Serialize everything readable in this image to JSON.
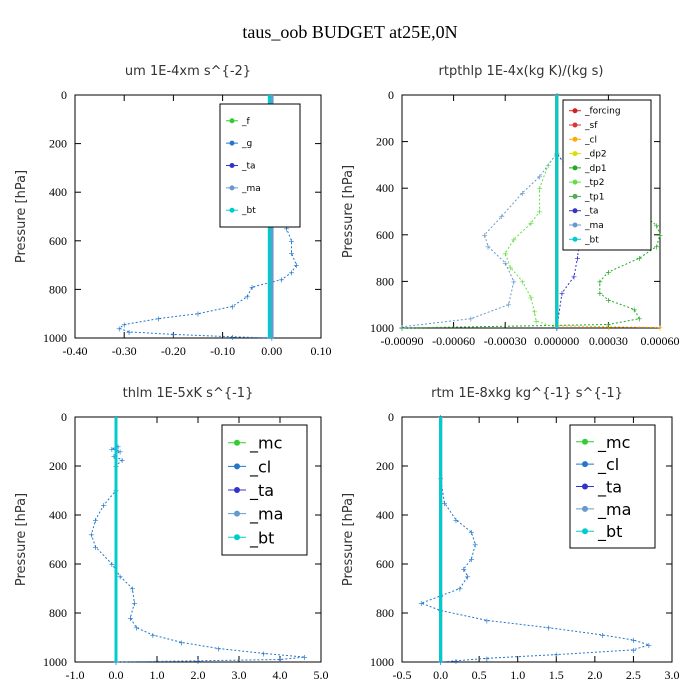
{
  "figure": {
    "title": "taus_oob  BUDGET at25E,0N"
  },
  "chart_data": [
    {
      "type": "line",
      "title": "um  1E-4xm s^{-2}",
      "ylabel": "Pressure [hPa]",
      "xlim": [
        -0.4,
        0.1
      ],
      "ylim": [
        1000,
        0
      ],
      "x_ticks": [
        "-0.40",
        "-0.30",
        "-0.20",
        "-0.10",
        "0.00",
        "0.10"
      ],
      "y_ticks": [
        "0",
        "200",
        "400",
        "600",
        "800",
        "1000"
      ],
      "legend": [
        "_f",
        "_g",
        "_ta",
        "_ma",
        "_bt"
      ],
      "series": [
        {
          "name": "_f",
          "color": "#33cc33",
          "points": [
            [
              0,
              0
            ],
            [
              0,
              100
            ],
            [
              0,
              200
            ],
            [
              0,
              300
            ],
            [
              0,
              400
            ],
            [
              0,
              500
            ],
            [
              0,
              600
            ],
            [
              0,
              700
            ],
            [
              0,
              800
            ],
            [
              0,
              900
            ],
            [
              0,
              1000
            ]
          ]
        },
        {
          "name": "_g",
          "color": "#2277cc",
          "points": [
            [
              -0.03,
              100
            ],
            [
              0.02,
              110
            ],
            [
              0.05,
              130
            ],
            [
              0.04,
              160
            ],
            [
              0.02,
              220
            ],
            [
              0.03,
              280
            ],
            [
              0.03,
              330
            ],
            [
              0.02,
              400
            ],
            [
              0.03,
              450
            ],
            [
              0.03,
              500
            ],
            [
              0.03,
              550
            ],
            [
              0.04,
              600
            ],
            [
              0.04,
              650
            ],
            [
              0.05,
              700
            ],
            [
              0.04,
              730
            ],
            [
              0.02,
              760
            ],
            [
              -0.04,
              790
            ],
            [
              -0.05,
              830
            ],
            [
              -0.08,
              870
            ],
            [
              -0.15,
              900
            ],
            [
              -0.23,
              920
            ],
            [
              -0.3,
              945
            ],
            [
              -0.31,
              960
            ],
            [
              -0.29,
              975
            ],
            [
              -0.2,
              985
            ],
            [
              -0.08,
              995
            ],
            [
              0,
              1000
            ]
          ]
        },
        {
          "name": "_ta",
          "color": "#3333cc",
          "points": [
            [
              0,
              0
            ],
            [
              0,
              1000
            ]
          ]
        },
        {
          "name": "_ma",
          "color": "#6699cc",
          "points": [
            [
              0,
              0
            ],
            [
              0,
              1000
            ]
          ]
        },
        {
          "name": "_bt",
          "color": "#00cccc",
          "points": [
            [
              -0.005,
              0
            ],
            [
              -0.005,
              1000
            ]
          ]
        }
      ]
    },
    {
      "type": "line",
      "title": "rtpthlp  1E-4x(kg K)/(kg s)",
      "ylabel": "Pressure [hPa]",
      "xlim": [
        -0.0009,
        0.0006
      ],
      "ylim": [
        1000,
        0
      ],
      "x_ticks": [
        "-0.00090",
        "-0.00060",
        "-0.00030",
        "0.000000",
        "0.00030",
        "0.00060"
      ],
      "y_ticks": [
        "0",
        "200",
        "400",
        "600",
        "800",
        "1000"
      ],
      "legend": [
        "_forcing",
        "_sf",
        "_cl",
        "_dp2",
        "_dp1",
        "_tp2",
        "_tp1",
        "_ta",
        "_ma",
        "_bt"
      ],
      "series": [
        {
          "name": "_forcing",
          "color": "#cc2222",
          "points": [
            [
              0,
              0
            ],
            [
              0,
              1000
            ]
          ]
        },
        {
          "name": "_sf",
          "color": "#dd3333",
          "points": [
            [
              0,
              0
            ],
            [
              0,
              1000
            ]
          ]
        },
        {
          "name": "_cl",
          "color": "#ffaa00",
          "points": [
            [
              0,
              0
            ],
            [
              0,
              990
            ],
            [
              0.0003,
              995
            ],
            [
              0.0006,
              998
            ]
          ]
        },
        {
          "name": "_dp2",
          "color": "#dddd00",
          "points": [
            [
              0,
              0
            ],
            [
              0,
              1000
            ]
          ]
        },
        {
          "name": "_dp1",
          "color": "#22aa22",
          "points": [
            [
              0,
              0
            ],
            [
              0,
              250
            ],
            [
              5e-05,
              300
            ],
            [
              0.0001,
              350
            ],
            [
              0.0002,
              400
            ],
            [
              0.00035,
              450
            ],
            [
              0.00048,
              500
            ],
            [
              0.00058,
              560
            ],
            [
              0.0006,
              600
            ],
            [
              0.00058,
              650
            ],
            [
              0.00048,
              700
            ],
            [
              0.0003,
              760
            ],
            [
              0.00025,
              800
            ],
            [
              0.00025,
              850
            ],
            [
              0.0003,
              880
            ],
            [
              0.00045,
              920
            ],
            [
              0.00048,
              960
            ],
            [
              0.0003,
              985
            ],
            [
              -0.0009,
              1000
            ]
          ]
        },
        {
          "name": "_tp2",
          "color": "#66dd44",
          "points": [
            [
              0,
              0
            ],
            [
              0,
              250
            ],
            [
              -5e-05,
              300
            ],
            [
              -0.0001,
              400
            ],
            [
              -0.0001,
              500
            ],
            [
              -0.00015,
              550
            ],
            [
              -0.00025,
              620
            ],
            [
              -0.0003,
              680
            ],
            [
              -0.00027,
              740
            ],
            [
              -0.0002,
              800
            ],
            [
              -0.00015,
              870
            ],
            [
              -0.00013,
              930
            ],
            [
              -0.00012,
              970
            ],
            [
              0,
              1000
            ]
          ]
        },
        {
          "name": "_tp1",
          "color": "#55aa55",
          "points": [
            [
              0,
              0
            ],
            [
              0,
              1000
            ]
          ]
        },
        {
          "name": "_ta",
          "color": "#3333cc",
          "points": [
            [
              0,
              0
            ],
            [
              0,
              250
            ],
            [
              5e-05,
              300
            ],
            [
              0.0001,
              400
            ],
            [
              0.00012,
              500
            ],
            [
              0.00015,
              570
            ],
            [
              0.00013,
              640
            ],
            [
              0.00012,
              700
            ],
            [
              0.0001,
              780
            ],
            [
              3e-05,
              850
            ],
            [
              0,
              1000
            ]
          ]
        },
        {
          "name": "_ma",
          "color": "#6699cc",
          "points": [
            [
              0,
              0
            ],
            [
              0,
              250
            ],
            [
              -0.0001,
              350
            ],
            [
              -0.0002,
              420
            ],
            [
              -0.00032,
              520
            ],
            [
              -0.00042,
              600
            ],
            [
              -0.0004,
              650
            ],
            [
              -0.0003,
              720
            ],
            [
              -0.00025,
              800
            ],
            [
              -0.00028,
              900
            ],
            [
              -0.0005,
              960
            ],
            [
              -0.0009,
              995
            ]
          ]
        },
        {
          "name": "_bt",
          "color": "#00cccc",
          "points": [
            [
              0,
              0
            ],
            [
              0,
              1000
            ]
          ]
        }
      ]
    },
    {
      "type": "line",
      "title": "thlm  1E-5xK s^{-1}",
      "ylabel": "Pressure [hPa]",
      "xlim": [
        -1.0,
        5.0
      ],
      "ylim": [
        1000,
        0
      ],
      "x_ticks": [
        "-1.0",
        "0.0",
        "1.0",
        "2.0",
        "3.0",
        "4.0",
        "5.0"
      ],
      "y_ticks": [
        "0",
        "200",
        "400",
        "600",
        "800",
        "1000"
      ],
      "legend": [
        "_mc",
        "_cl",
        "_ta",
        "_ma",
        "_bt"
      ],
      "series": [
        {
          "name": "_mc",
          "color": "#33cc33",
          "points": [
            [
              0,
              0
            ],
            [
              0,
              100
            ],
            [
              0,
              200
            ],
            [
              0,
              300
            ],
            [
              0,
              400
            ],
            [
              0,
              500
            ],
            [
              0,
              600
            ],
            [
              0,
              700
            ],
            [
              0,
              800
            ],
            [
              0,
              900
            ],
            [
              0,
              1000
            ]
          ]
        },
        {
          "name": "_cl",
          "color": "#2277cc",
          "points": [
            [
              0.05,
              120
            ],
            [
              -0.1,
              130
            ],
            [
              0.1,
              140
            ],
            [
              -0.05,
              160
            ],
            [
              0.15,
              175
            ],
            [
              0,
              200
            ],
            [
              0,
              300
            ],
            [
              -0.3,
              360
            ],
            [
              -0.5,
              420
            ],
            [
              -0.6,
              480
            ],
            [
              -0.5,
              530
            ],
            [
              -0.1,
              600
            ],
            [
              0.1,
              650
            ],
            [
              0.4,
              700
            ],
            [
              0.45,
              760
            ],
            [
              0.35,
              820
            ],
            [
              0.5,
              860
            ],
            [
              0.9,
              890
            ],
            [
              1.6,
              920
            ],
            [
              2.5,
              945
            ],
            [
              3.6,
              965
            ],
            [
              4.6,
              980
            ],
            [
              4.0,
              990
            ],
            [
              2.0,
              995
            ],
            [
              0,
              1000
            ]
          ]
        },
        {
          "name": "_ta",
          "color": "#3333cc",
          "points": [
            [
              0,
              0
            ],
            [
              0,
              1000
            ]
          ]
        },
        {
          "name": "_ma",
          "color": "#6699cc",
          "points": [
            [
              0,
              0
            ],
            [
              0,
              1000
            ]
          ]
        },
        {
          "name": "_bt",
          "color": "#00cccc",
          "points": [
            [
              0,
              0
            ],
            [
              0,
              1000
            ]
          ]
        }
      ]
    },
    {
      "type": "line",
      "title": "rtm  1E-8xkg kg^{-1} s^{-1}",
      "ylabel": "Pressure [hPa]",
      "xlim": [
        -0.5,
        3.0
      ],
      "ylim": [
        1000,
        0
      ],
      "x_ticks": [
        "-0.5",
        "0.0",
        "0.5",
        "1.0",
        "1.5",
        "2.0",
        "2.5",
        "3.0"
      ],
      "y_ticks": [
        "0",
        "200",
        "400",
        "600",
        "800",
        "1000"
      ],
      "legend": [
        "_mc",
        "_cl",
        "_ta",
        "_ma",
        "_bt"
      ],
      "series": [
        {
          "name": "_mc",
          "color": "#33cc33",
          "points": [
            [
              0,
              0
            ],
            [
              0,
              100
            ],
            [
              0,
              200
            ],
            [
              0,
              300
            ],
            [
              0,
              400
            ],
            [
              0,
              500
            ],
            [
              0,
              600
            ],
            [
              0,
              700
            ],
            [
              0,
              800
            ],
            [
              0,
              900
            ],
            [
              0,
              1000
            ]
          ]
        },
        {
          "name": "_cl",
          "color": "#2277cc",
          "points": [
            [
              0,
              0
            ],
            [
              0,
              250
            ],
            [
              0.05,
              350
            ],
            [
              0.2,
              420
            ],
            [
              0.4,
              470
            ],
            [
              0.45,
              520
            ],
            [
              0.4,
              580
            ],
            [
              0.3,
              620
            ],
            [
              0.35,
              650
            ],
            [
              0.25,
              700
            ],
            [
              0,
              730
            ],
            [
              -0.25,
              760
            ],
            [
              0,
              790
            ],
            [
              0.6,
              830
            ],
            [
              1.4,
              860
            ],
            [
              2.1,
              890
            ],
            [
              2.5,
              910
            ],
            [
              2.7,
              930
            ],
            [
              2.5,
              950
            ],
            [
              1.5,
              970
            ],
            [
              0.6,
              985
            ],
            [
              0.2,
              995
            ],
            [
              0,
              1000
            ]
          ]
        },
        {
          "name": "_ta",
          "color": "#3333cc",
          "points": [
            [
              0,
              0
            ],
            [
              0,
              1000
            ]
          ]
        },
        {
          "name": "_ma",
          "color": "#6699cc",
          "points": [
            [
              0,
              0
            ],
            [
              0,
              1000
            ]
          ]
        },
        {
          "name": "_bt",
          "color": "#00cccc",
          "points": [
            [
              0,
              0
            ],
            [
              0,
              1000
            ]
          ]
        }
      ]
    }
  ]
}
